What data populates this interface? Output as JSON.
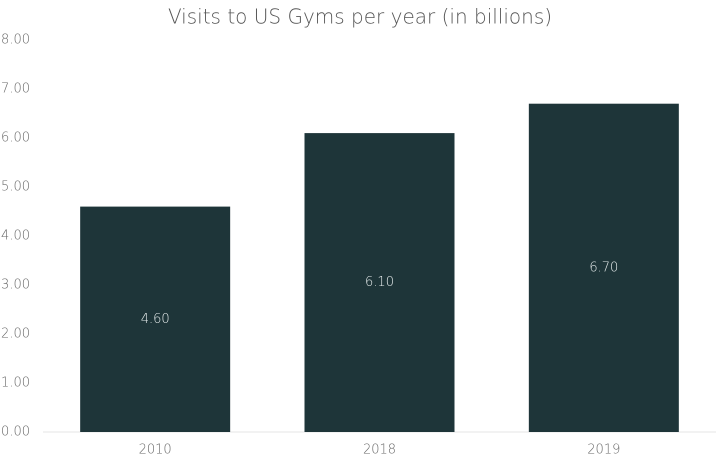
{
  "chart_data": {
    "type": "bar",
    "title": "Visits to US Gyms per year (in billions)",
    "categories": [
      "2010",
      "2018",
      "2019"
    ],
    "values": [
      4.6,
      6.1,
      6.7
    ],
    "value_labels": [
      "4.60",
      "6.10",
      "6.70"
    ],
    "color": "#1e3539",
    "ylim": [
      0,
      8
    ],
    "yticks": [
      {
        "value": 0,
        "label": "0.00"
      },
      {
        "value": 1,
        "label": "1.00"
      },
      {
        "value": 2,
        "label": "2.00"
      },
      {
        "value": 3,
        "label": "3.00"
      },
      {
        "value": 4,
        "label": "4.00"
      },
      {
        "value": 5,
        "label": "5.00"
      },
      {
        "value": 6,
        "label": "6.00"
      },
      {
        "value": 7,
        "label": "7.00"
      },
      {
        "value": 8,
        "label": "8.00"
      }
    ],
    "grid": false
  }
}
